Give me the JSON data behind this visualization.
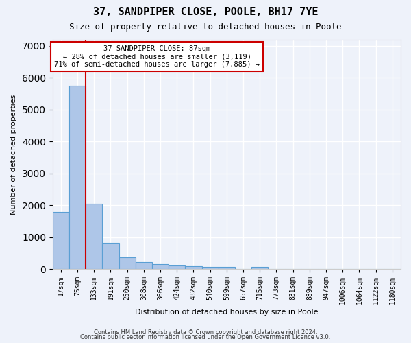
{
  "title": "37, SANDPIPER CLOSE, POOLE, BH17 7YE",
  "subtitle": "Size of property relative to detached houses in Poole",
  "xlabel": "Distribution of detached houses by size in Poole",
  "ylabel": "Number of detached properties",
  "categories": [
    "17sqm",
    "75sqm",
    "133sqm",
    "191sqm",
    "250sqm",
    "308sqm",
    "366sqm",
    "424sqm",
    "482sqm",
    "540sqm",
    "599sqm",
    "657sqm",
    "715sqm",
    "773sqm",
    "831sqm",
    "889sqm",
    "947sqm",
    "1006sqm",
    "1064sqm",
    "1122sqm",
    "1180sqm"
  ],
  "values": [
    1780,
    5750,
    2050,
    820,
    370,
    230,
    145,
    105,
    90,
    75,
    60,
    0,
    75,
    0,
    0,
    0,
    0,
    0,
    0,
    0,
    0
  ],
  "bar_color": "#aec6e8",
  "bar_edge_color": "#5a9fd4",
  "vline_pos": 1.5,
  "vline_color": "#cc0000",
  "annotation_line1": "37 SANDPIPER CLOSE: 87sqm",
  "annotation_line2": "← 28% of detached houses are smaller (3,119)",
  "annotation_line3": "71% of semi-detached houses are larger (7,885) →",
  "annotation_box_color": "#ffffff",
  "annotation_box_edge": "#cc0000",
  "ylim": [
    0,
    7200
  ],
  "footnote1": "Contains HM Land Registry data © Crown copyright and database right 2024.",
  "footnote2": "Contains public sector information licensed under the Open Government Licence v3.0.",
  "bg_color": "#eef2fa",
  "plot_bg_color": "#eef2fa",
  "grid_color": "#ffffff"
}
